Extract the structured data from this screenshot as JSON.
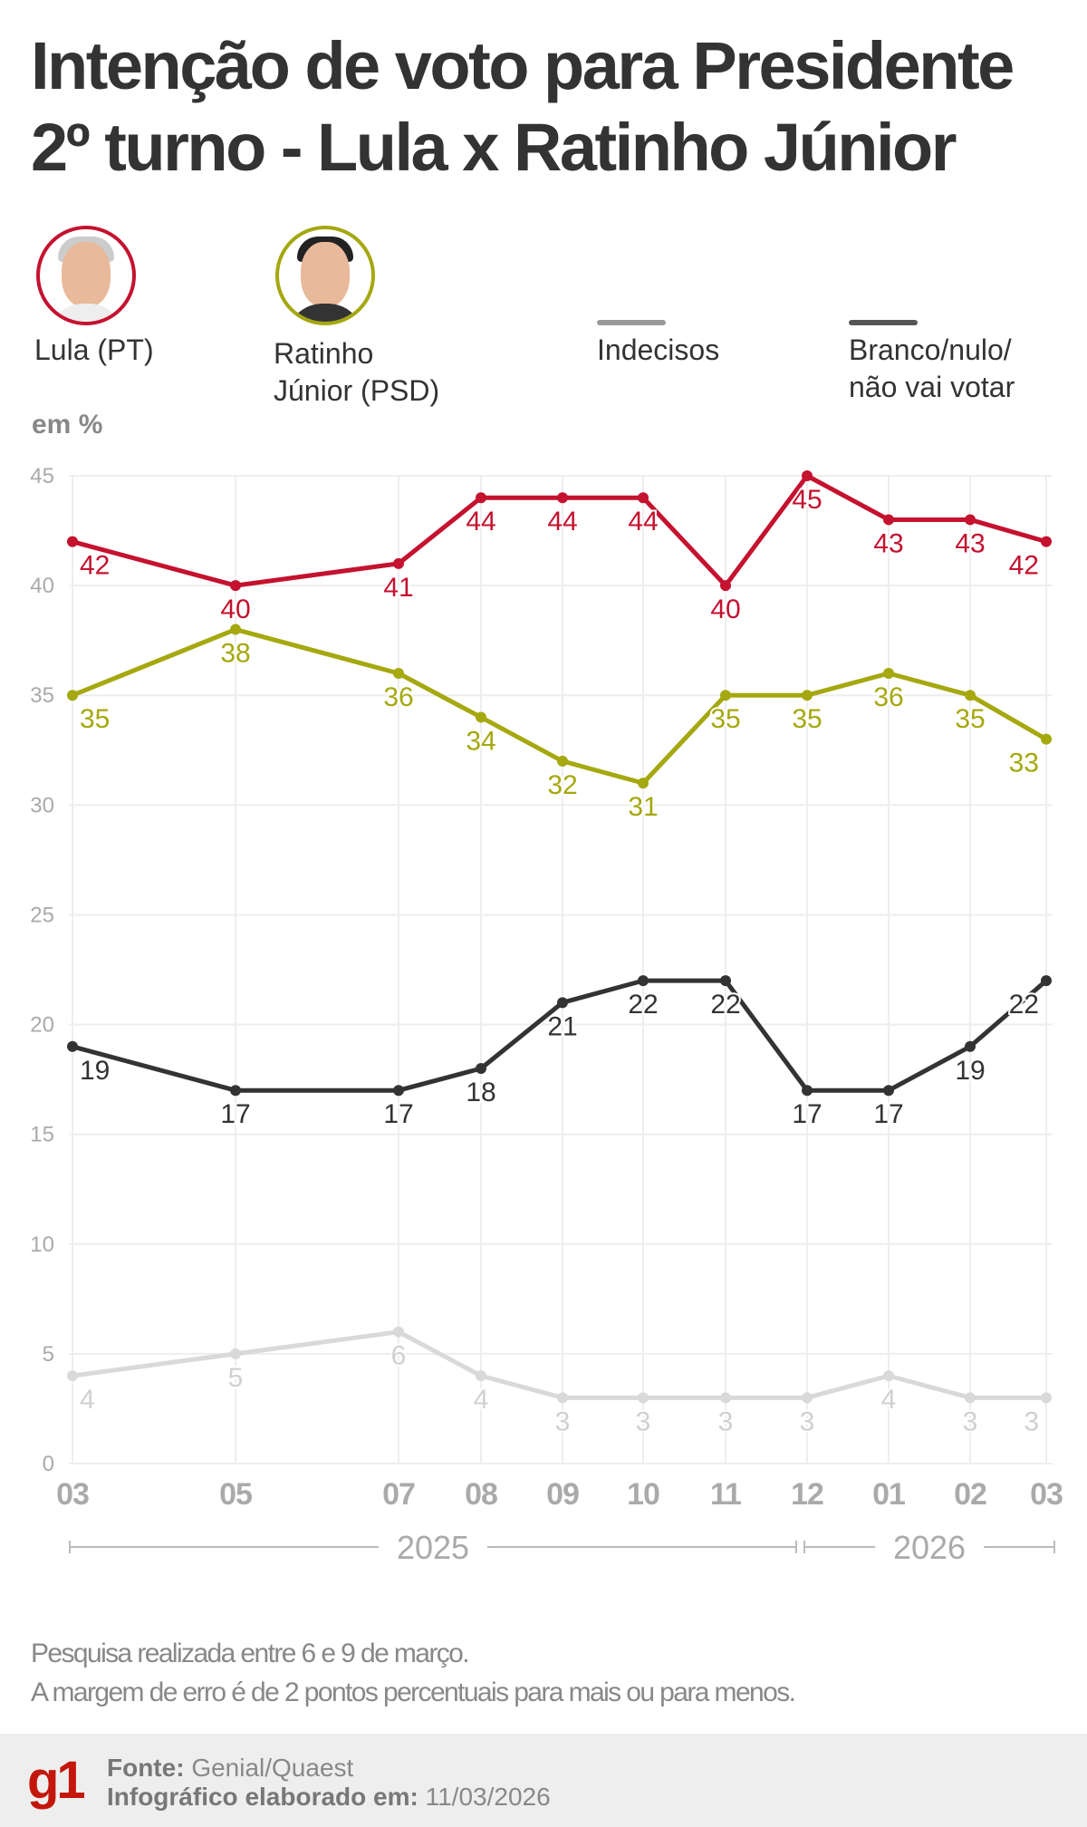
{
  "title": {
    "line1": "Intenção de voto para Presidente",
    "line2": "2º turno - Lula x Ratinho Júnior"
  },
  "legend": {
    "lula": {
      "label": "Lula (PT)",
      "color": "#c4122f",
      "icon": "lula-photo"
    },
    "ratinho": {
      "label_line1": "Ratinho",
      "label_line2": "Júnior (PSD)",
      "color": "#a5a80f",
      "icon": "ratinho-photo"
    },
    "indecisos": {
      "label": "Indecisos",
      "color": "#999999"
    },
    "branco": {
      "label_line1": "Branco/nulo/",
      "label_line2": "não vai votar",
      "color": "#555555"
    }
  },
  "unit_label": "em %",
  "chart_data": {
    "type": "line",
    "categories": [
      "03",
      "05",
      "07",
      "08",
      "09",
      "10",
      "11",
      "12",
      "01",
      "02",
      "03"
    ],
    "year_groups": [
      {
        "label": "2025",
        "from": "03",
        "to": "12"
      },
      {
        "label": "2026",
        "from": "01",
        "to": "03"
      }
    ],
    "ylim": [
      0,
      45
    ],
    "yticks": [
      0,
      5,
      10,
      15,
      20,
      25,
      30,
      35,
      40,
      45
    ],
    "grid": true,
    "series": [
      {
        "name": "Lula (PT)",
        "color": "#c4122f",
        "values": [
          42,
          40,
          41,
          44,
          44,
          44,
          40,
          45,
          43,
          43,
          42
        ]
      },
      {
        "name": "Ratinho Júnior (PSD)",
        "color": "#a5a80f",
        "values": [
          35,
          38,
          36,
          34,
          32,
          31,
          35,
          35,
          36,
          35,
          33
        ]
      },
      {
        "name": "Branco/nulo/não vai votar",
        "color": "#333333",
        "values": [
          19,
          17,
          17,
          18,
          21,
          22,
          22,
          17,
          17,
          19,
          22
        ]
      },
      {
        "name": "Indecisos",
        "color": "#d9d9d9",
        "values": [
          4,
          5,
          6,
          4,
          3,
          3,
          3,
          3,
          4,
          3,
          3
        ]
      }
    ]
  },
  "notes": {
    "line1": "Pesquisa realizada entre 6 e 9 de março.",
    "line2": "A margem de erro é de 2 pontos percentuais para mais ou para menos."
  },
  "footer": {
    "logo": "g1",
    "source_label": "Fonte:",
    "source": "Genial/Quaest",
    "made_label": "Infográfico elaborado em:",
    "made_date": "11/03/2026"
  }
}
